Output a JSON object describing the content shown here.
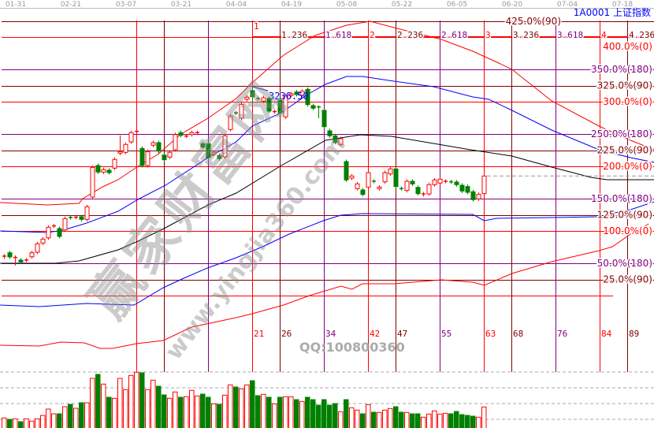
{
  "header": {
    "symbol": "1A0001",
    "name": "上证指数"
  },
  "watermark": {
    "cn": "赢家财富网",
    "url": "www.yingjia360.com",
    "qq": "QQ:100800360"
  },
  "colors": {
    "up": "#ff0000",
    "down": "#008000",
    "red": "#ff0000",
    "darkred": "#800000",
    "purple": "#800080",
    "blue": "#0000ff",
    "black": "#000000",
    "axis": "#999999"
  },
  "chart_data": {
    "type": "candlestick",
    "x_ticks": [
      "01-31",
      "02-21",
      "03-07",
      "03-21",
      "04-04",
      "04-19",
      "05-08",
      "05-22",
      "06-05",
      "06-20",
      "07-04",
      "07-18"
    ],
    "price_unit": "percent of Gann scale",
    "high_label": "3236.50",
    "high_label_bar": 45,
    "candles": [
      [
        59.8,
        61.0
      ],
      [
        66.2,
        59.8
      ],
      [
        58.9,
        59.0,
        62,
        46.6
      ],
      [
        54.9,
        52.1
      ],
      [
        54.8,
        55.0
      ],
      [
        60.1,
        66.2
      ],
      [
        67.1,
        80.1
      ],
      [
        81.3,
        87.4
      ],
      [
        89.4,
        105.7
      ],
      [
        107.6,
        107.8
      ],
      [
        103.7,
        91.5
      ],
      [
        101.6,
        119.1
      ],
      [
        120.8,
        120.6
      ],
      [
        121.0,
        121.2
      ],
      [
        122.0,
        117.9
      ],
      [
        117.9,
        137.4
      ],
      [
        152.4,
        198.4
      ],
      [
        201.2,
        191.1
      ],
      [
        191.1,
        194.8
      ],
      [
        193.9,
        190.2
      ],
      [
        197.2,
        210.6
      ],
      [
        220.4,
        222.8,
        247.9,
        217
      ],
      [
        221.6,
        233.8
      ],
      [
        237.8,
        252.1
      ],
      [
        253.9,
        254.1
      ],
      [
        227.7,
        201.2
      ],
      [
        201.2,
        222.8
      ],
      [
        232.6,
        236.6
      ],
      [
        236.6,
        223.5
      ],
      [
        217.4,
        210.1
      ],
      [
        214.3,
        221.6
      ],
      [
        225.6,
        249.1
      ],
      [
        252.1,
        247.9
      ],
      [
        246.6,
        246.8
      ],
      [
        249.1,
        252.1
      ],
      [
        252.0,
        252.2
      ],
      [
        235.0,
        229.6
      ],
      [
        235.0,
        213.4
      ],
      [
        218.7,
        221.6
      ],
      [
        216.7,
        211.8
      ],
      [
        214.6,
        247.2
      ],
      [
        257.0,
        277.7
      ],
      [
        282.6,
        282.4
      ],
      [
        274.4,
        296.0
      ],
      [
        303.7,
        307.0
      ],
      [
        317.1,
        307.7,
        323.2,
        295.1
      ],
      [
        304.9,
        304.7
      ],
      [
        300.9,
        306.1
      ],
      [
        304.9,
        285.4
      ],
      [
        284.5,
        284.7
      ],
      [
        302.1,
        282.6
      ],
      [
        276.5,
        308.9
      ],
      [
        309.8,
        312.2
      ],
      [
        315.0,
        311.0
      ],
      [
        310.1,
        316.2
      ],
      [
        319.1,
        295.5
      ],
      [
        293.9,
        289.9
      ],
      [
        291.9,
        291.7,
        294,
        274.4
      ],
      [
        286.6,
        261.3
      ],
      [
        254.9,
        247.2
      ],
      [
        247.2,
        237.0
      ],
      [
        233.8,
        242.7
      ],
      [
        207.3,
        178.9
      ],
      [
        181.7,
        185.0
      ],
      [
        165.5,
        172.8
      ],
      [
        163.4,
        156.5
      ],
      [
        167.9,
        190.2
      ],
      [
        176.9,
        176.7
      ],
      [
        165.5,
        167.9
      ],
      [
        176.0,
        190.2
      ],
      [
        188.2,
        196.0
      ],
      [
        196.0,
        168.7
      ],
      [
        165.6,
        165.4
      ],
      [
        162.6,
        176.8
      ],
      [
        176.8,
        172.8
      ],
      [
        167.4,
        157.7
      ],
      [
        156.1,
        157.3
      ],
      [
        157.3,
        171.6
      ],
      [
        171.6,
        178.9
      ],
      [
        174.0,
        180.1
      ],
      [
        176.7,
        176.9
      ],
      [
        176.0,
        175.8
      ],
      [
        175.6,
        171.6
      ],
      [
        170.7,
        161.8
      ],
      [
        168.7,
        159.8
      ],
      [
        160.6,
        148.4
      ],
      [
        149.6,
        156.5
      ],
      [
        157.7,
        185.0
      ]
    ],
    "volume_relative": [
      12.7,
      11,
      11.7,
      8,
      11.7,
      8.7,
      11.7,
      16,
      24,
      18,
      18,
      27,
      30,
      25,
      32,
      32,
      63,
      68,
      55.7,
      39,
      37.7,
      63,
      48.7,
      66.7,
      70.7,
      70,
      48.7,
      60.7,
      53,
      42,
      37.7,
      45.7,
      39,
      39.7,
      47.7,
      40.7,
      43,
      39,
      30.7,
      30,
      41.7,
      54.7,
      52,
      49.7,
      54.7,
      60,
      41,
      42.7,
      39,
      30.7,
      39,
      39.7,
      39.7,
      36,
      33.7,
      39,
      36,
      29,
      36,
      29,
      31,
      20.7,
      36,
      25.7,
      22.7,
      18,
      29.7,
      20,
      19.7,
      22.7,
      24.7,
      27,
      20,
      19.7,
      18,
      18,
      13.7,
      17.7,
      21.7,
      17.7,
      18.7,
      18,
      21,
      17,
      16,
      15,
      13.7,
      26.7
    ],
    "last_price": 185.0,
    "series": [
      {
        "color": "red",
        "points": [
          [
            -0.7,
            143.9
          ],
          [
            7.9,
            140.2
          ],
          [
            13.6,
            142.7
          ],
          [
            14.3,
            150
          ],
          [
            17.9,
            168.3
          ],
          [
            20.7,
            179.3
          ],
          [
            24.3,
            200
          ],
          [
            27.9,
            218.3
          ],
          [
            32.1,
            250
          ],
          [
            37,
            274.4
          ],
          [
            42.1,
            304.9
          ],
          [
            45,
            329.3
          ],
          [
            50.7,
            372
          ],
          [
            56.4,
            402.4
          ],
          [
            62.1,
            418.3
          ],
          [
            66.4,
            424.4
          ],
          [
            70.7,
            414.6
          ],
          [
            79.3,
            396.3
          ],
          [
            85,
            378
          ],
          [
            89.7,
            359.8
          ],
          [
            92.1,
            350
          ],
          [
            99.3,
            301.2
          ],
          [
            107.9,
            262.2
          ],
          [
            113.6,
            240.2
          ],
          [
            117.9,
            225.6
          ]
        ]
      },
      {
        "color": "blue",
        "points": [
          [
            -0.7,
            100
          ],
          [
            7.9,
            97.6
          ],
          [
            10.7,
            101.2
          ],
          [
            15,
            112.2
          ],
          [
            20.7,
            130.5
          ],
          [
            24.3,
            148.8
          ],
          [
            29.3,
            170.7
          ],
          [
            37,
            213.4
          ],
          [
            42.1,
            237.8
          ],
          [
            45,
            262.2
          ],
          [
            50.3,
            282.9
          ],
          [
            55,
            311
          ],
          [
            58.3,
            326.8
          ],
          [
            62.1,
            339
          ],
          [
            65,
            339
          ],
          [
            70.7,
            331.7
          ],
          [
            77.9,
            323.2
          ],
          [
            85,
            307.3
          ],
          [
            87.9,
            303.7
          ],
          [
            92.1,
            286.6
          ],
          [
            99.3,
            256.1
          ],
          [
            107.9,
            225.6
          ],
          [
            113.6,
            213.4
          ],
          [
            117.9,
            206.1
          ]
        ]
      },
      {
        "color": "black",
        "points": [
          [
            -0.7,
            50
          ],
          [
            9.3,
            50
          ],
          [
            13.6,
            53.7
          ],
          [
            20.7,
            70.7
          ],
          [
            24.3,
            84.1
          ],
          [
            29,
            103.7
          ],
          [
            37,
            140.2
          ],
          [
            42.1,
            158.5
          ],
          [
            50.3,
            201.2
          ],
          [
            58.3,
            240.2
          ],
          [
            64.6,
            248.8
          ],
          [
            70.3,
            246.3
          ],
          [
            84.6,
            225.6
          ],
          [
            92.1,
            215.9
          ],
          [
            99.3,
            198.8
          ],
          [
            106.4,
            182.9
          ],
          [
            109.3,
            179.3
          ],
          [
            117.9,
            179.3
          ]
        ]
      },
      {
        "color": "blue",
        "points": [
          [
            -0.7,
            -14.6
          ],
          [
            6.4,
            -17.1
          ],
          [
            15,
            -12.2
          ],
          [
            23.6,
            -14.6
          ],
          [
            28.9,
            12.2
          ],
          [
            32.6,
            26.8
          ],
          [
            36.9,
            42.7
          ],
          [
            42.1,
            58.5
          ],
          [
            46.9,
            75.6
          ],
          [
            51.7,
            95.1
          ],
          [
            57.9,
            115.9
          ],
          [
            61.1,
            124.4
          ],
          [
            65,
            126.8
          ],
          [
            85,
            125.6
          ],
          [
            87.1,
            115.9
          ],
          [
            89.3,
            119.5
          ],
          [
            99.3,
            120.7
          ],
          [
            107.9,
            122
          ],
          [
            110.7,
            128
          ],
          [
            113.6,
            132.9
          ],
          [
            117.9,
            145.1
          ]
        ]
      },
      {
        "color": "red",
        "points": [
          [
            -0.7,
            -76.8
          ],
          [
            6.4,
            -78
          ],
          [
            10.3,
            -72
          ],
          [
            14.6,
            -73.2
          ],
          [
            17.4,
            -81.7
          ],
          [
            19.7,
            -81.7
          ],
          [
            24,
            -74.4
          ],
          [
            28.9,
            -69.5
          ],
          [
            34,
            -48.8
          ],
          [
            37.4,
            -42.7
          ],
          [
            42.1,
            -34.1
          ],
          [
            45,
            -28
          ],
          [
            50.7,
            -14.6
          ],
          [
            55.4,
            0
          ],
          [
            61.1,
            14.6
          ],
          [
            63.1,
            9.8
          ],
          [
            65,
            18.3
          ],
          [
            70.7,
            18.3
          ],
          [
            79.3,
            24.4
          ],
          [
            85,
            20.7
          ],
          [
            87.1,
            15.9
          ],
          [
            92.1,
            34.1
          ],
          [
            99.3,
            52.4
          ],
          [
            107.9,
            69.5
          ],
          [
            110.3,
            75.6
          ],
          [
            113.6,
            95.1
          ],
          [
            116.9,
            111
          ]
        ]
      }
    ],
    "gann_levels": [
      {
        "pct": 425,
        "label": "425.0%(90)",
        "color": "darkred"
      },
      {
        "pct": 400,
        "label": "400.0%(0)",
        "color": "red"
      },
      {
        "pct": 350,
        "label": "350.0%(180)",
        "color": "purple"
      },
      {
        "pct": 325,
        "label": "325.0%(90)",
        "color": "darkred"
      },
      {
        "pct": 300,
        "label": "300.0%(0)",
        "color": "red"
      },
      {
        "pct": 250,
        "label": "250.0%(180)",
        "color": "purple"
      },
      {
        "pct": 225,
        "label": "225.0%(90)",
        "color": "darkred"
      },
      {
        "pct": 200,
        "label": "200.0%(0)",
        "color": "red"
      },
      {
        "pct": 150,
        "label": "150.0%(180)",
        "color": "purple"
      },
      {
        "pct": 125,
        "label": "125.0%(90)",
        "color": "darkred"
      },
      {
        "pct": 100,
        "label": "100.0%(0)",
        "color": "red"
      },
      {
        "pct": 50,
        "label": "50.0%(180)",
        "color": "purple"
      },
      {
        "pct": 25,
        "label": "25.0%(90)",
        "color": "darkred"
      },
      {
        "pct": 0,
        "label": "",
        "color": "red"
      }
    ],
    "time_lines": [
      {
        "bar": 24,
        "count": "",
        "fib": "",
        "color": "red"
      },
      {
        "bar": 29,
        "count": "",
        "fib": "",
        "color": "darkred"
      },
      {
        "bar": 37,
        "count": "",
        "fib": "",
        "color": "purple"
      },
      {
        "bar": 45,
        "count": "21",
        "fib": "1",
        "color": "red"
      },
      {
        "bar": 50,
        "count": "26",
        "fib": "1.236",
        "color": "darkred"
      },
      {
        "bar": 58,
        "count": "34",
        "fib": "1.618",
        "color": "purple"
      },
      {
        "bar": 66,
        "count": "42",
        "fib": "2",
        "color": "red"
      },
      {
        "bar": 71,
        "count": "47",
        "fib": "2.236",
        "color": "darkred"
      },
      {
        "bar": 79,
        "count": "55",
        "fib": "2.618",
        "color": "purple"
      },
      {
        "bar": 87,
        "count": "63",
        "fib": "3",
        "color": "red"
      },
      {
        "bar": 92,
        "count": "68",
        "fib": "3.236",
        "color": "darkred"
      },
      {
        "bar": 100,
        "count": "76",
        "fib": "3.618",
        "color": "purple"
      },
      {
        "bar": 108,
        "count": "84",
        "fib": "4",
        "color": "red"
      },
      {
        "bar": 113,
        "count": "89",
        "fib": "4.236",
        "color": "darkred"
      }
    ]
  }
}
